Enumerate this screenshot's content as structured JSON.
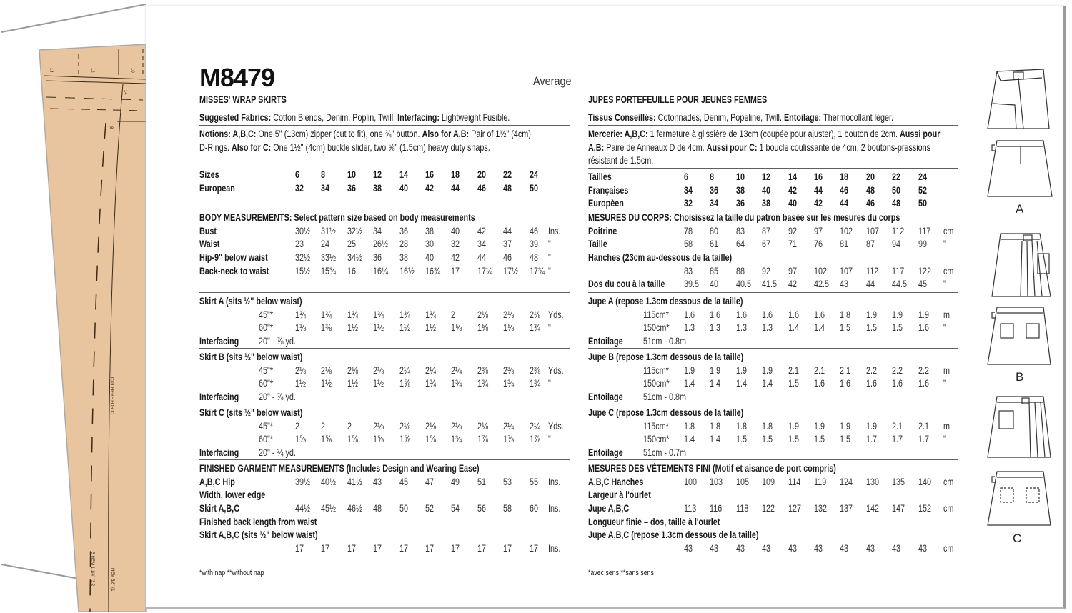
{
  "pattern_number": "M8479",
  "difficulty": "Average",
  "tissue_labels": [
    "14",
    "12",
    "10",
    "14",
    "8",
    "CUT HERE FOR C",
    "B HEM 1 1/4\" (3.2",
    "HEM 5/8\" (1."
  ],
  "colors": {
    "tissue": "#e8c59e",
    "text": "#1a1a1a",
    "rule": "#5e5e5e"
  },
  "view_labels": [
    "A",
    "B",
    "C"
  ],
  "left": {
    "blocks": [
      {
        "rows": [
          {
            "label": "MISSES' WRAP SKIRTS"
          }
        ]
      },
      {
        "para": [
          [
            {
              "b": true,
              "t": "Suggested Fabrics: "
            },
            {
              "t": "Cotton Blends, Denim, Poplin, Twill. "
            },
            {
              "b": true,
              "t": "Interfacing: "
            },
            {
              "t": "Lightweight Fusible."
            }
          ]
        ]
      },
      {
        "para": [
          [
            {
              "b": true,
              "t": "Notions: A,B,C: "
            },
            {
              "t": "One 5\" (13cm) zipper (cut to fit), one ¾\" button. "
            },
            {
              "b": true,
              "t": "Also for A,B: "
            },
            {
              "t": "Pair of 1½\" (4cm)"
            }
          ],
          [
            {
              "t": "D-Rings. "
            },
            {
              "b": true,
              "t": "Also for C: "
            },
            {
              "t": "One 1½\" (4cm) buckle slider, two ⅝\" (1.5cm) heavy duty snaps."
            }
          ]
        ]
      },
      {
        "rows": [
          {
            "label": "Sizes",
            "bold_values": true,
            "values": [
              "6",
              "8",
              "10",
              "12",
              "14",
              "16",
              "18",
              "20",
              "22",
              "24"
            ]
          },
          {
            "label": "European",
            "bold_values": true,
            "values": [
              "32",
              "34",
              "36",
              "38",
              "40",
              "42",
              "44",
              "46",
              "48",
              "50"
            ]
          }
        ]
      },
      {
        "rows": [
          {
            "label": "BODY MEASUREMENTS: Select pattern size based on body measurements"
          },
          {
            "label": "Bust",
            "values": [
              "30½",
              "31½",
              "32½",
              "34",
              "36",
              "38",
              "40",
              "42",
              "44",
              "46"
            ],
            "unit": "Ins."
          },
          {
            "label": "Waist",
            "values": [
              "23",
              "24",
              "25",
              "26½",
              "28",
              "30",
              "32",
              "34",
              "37",
              "39"
            ],
            "unit": "\""
          },
          {
            "label": "Hip-9\" below waist",
            "values": [
              "32½",
              "33½",
              "34½",
              "36",
              "38",
              "40",
              "42",
              "44",
              "46",
              "48"
            ],
            "unit": "\""
          },
          {
            "label": "Back-neck to waist",
            "values": [
              "15½",
              "15¾",
              "16",
              "16¼",
              "16½",
              "16¾",
              "17",
              "17¼",
              "17½",
              "17¾"
            ],
            "unit": "\""
          }
        ]
      },
      {
        "rows": [
          {
            "label": "Skirt A (sits ½\" below waist)"
          },
          {
            "sub": "45\"*",
            "values": [
              "1¾",
              "1¾",
              "1¾",
              "1¾",
              "1¾",
              "1¾",
              "2",
              "2⅛",
              "2⅛",
              "2⅛"
            ],
            "unit": "Yds."
          },
          {
            "sub": "60\"*",
            "values": [
              "1⅜",
              "1⅜",
              "1½",
              "1½",
              "1½",
              "1½",
              "1⅝",
              "1⅝",
              "1⅝",
              "1¾"
            ],
            "unit": "\""
          },
          {
            "label": "Interfacing",
            "sub": "20\" - ⅞ yd."
          }
        ]
      },
      {
        "rows": [
          {
            "label": "Skirt B (sits ½\" below waist)"
          },
          {
            "sub": "45\"*",
            "values": [
              "2⅛",
              "2⅛",
              "2⅛",
              "2⅛",
              "2¼",
              "2¼",
              "2¼",
              "2⅜",
              "2⅜",
              "2⅜"
            ],
            "unit": "Yds."
          },
          {
            "sub": "60\"*",
            "values": [
              "1½",
              "1½",
              "1½",
              "1½",
              "1⅝",
              "1¾",
              "1¾",
              "1¾",
              "1¾",
              "1¾"
            ],
            "unit": "\""
          },
          {
            "label": "Interfacing",
            "sub": "20\" - ⅞ yd."
          }
        ]
      },
      {
        "rows": [
          {
            "label": "Skirt C (sits ½\" below waist)"
          },
          {
            "sub": "45\"*",
            "values": [
              "2",
              "2",
              "2",
              "2⅛",
              "2⅛",
              "2⅛",
              "2⅛",
              "2⅛",
              "2¼",
              "2¼"
            ],
            "unit": "Yds."
          },
          {
            "sub": "60\"*",
            "values": [
              "1⅝",
              "1⅝",
              "1⅝",
              "1⅝",
              "1⅝",
              "1⅝",
              "1¾",
              "1⅞",
              "1⅞",
              "1⅞"
            ],
            "unit": "\""
          },
          {
            "label": "Interfacing",
            "sub": "20\" - ¾ yd."
          }
        ]
      },
      {
        "rows": [
          {
            "label": "FINISHED GARMENT MEASUREMENTS (Includes Design and Wearing Ease)"
          },
          {
            "label": "A,B,C Hip",
            "values": [
              "39½",
              "40½",
              "41½",
              "43",
              "45",
              "47",
              "49",
              "51",
              "53",
              "55"
            ],
            "unit": "Ins."
          },
          {
            "label": "Width, lower edge"
          },
          {
            "label": "Skirt A,B,C",
            "values": [
              "44½",
              "45½",
              "46½",
              "48",
              "50",
              "52",
              "54",
              "56",
              "58",
              "60"
            ],
            "unit": "Ins."
          },
          {
            "label": "Finished back length from waist"
          },
          {
            "label": "Skirt A,B,C (sits ½\" below waist)"
          },
          {
            "values": [
              "17",
              "17",
              "17",
              "17",
              "17",
              "17",
              "17",
              "17",
              "17",
              "17"
            ],
            "unit": "Ins."
          }
        ]
      }
    ],
    "footnote": "*with nap   **without nap"
  },
  "right": {
    "blocks": [
      {
        "rows": [
          {
            "label": "JUPES PORTEFEUILLE POUR JEUNES FEMMES"
          }
        ]
      },
      {
        "para": [
          [
            {
              "b": true,
              "t": "Tissus Conseillés: "
            },
            {
              "t": "Cotonnades, Denim, Popeline, Twill. "
            },
            {
              "b": true,
              "t": "Entoilage: "
            },
            {
              "t": "Thermocollant léger."
            }
          ]
        ]
      },
      {
        "para": [
          [
            {
              "b": true,
              "t": "Mercerie: A,B,C: "
            },
            {
              "t": "1 fermeture à glissière de 13cm (coupée pour ajuster), 1 bouton de 2cm. "
            },
            {
              "b": true,
              "t": "Aussi pour"
            }
          ],
          [
            {
              "b": true,
              "t": "A,B: "
            },
            {
              "t": "Paire de Anneaux D de 4cm. "
            },
            {
              "b": true,
              "t": "Aussi pour C: "
            },
            {
              "t": "1 boucle coulissante de 4cm, 2 boutons-pressions"
            }
          ],
          [
            {
              "t": "résistant de 1.5cm."
            }
          ]
        ]
      },
      {
        "rows": [
          {
            "label": "Tailles",
            "bold_values": true,
            "values": [
              "6",
              "8",
              "10",
              "12",
              "14",
              "16",
              "18",
              "20",
              "22",
              "24"
            ]
          },
          {
            "label": "Françaises",
            "bold_values": true,
            "values": [
              "34",
              "36",
              "38",
              "40",
              "42",
              "44",
              "46",
              "48",
              "50",
              "52"
            ]
          },
          {
            "label": "Europèen",
            "bold_values": true,
            "values": [
              "32",
              "34",
              "36",
              "38",
              "40",
              "42",
              "44",
              "46",
              "48",
              "50"
            ]
          }
        ]
      },
      {
        "rows": [
          {
            "label": "MESURES DU CORPS: Choisissez la taille du patron basée sur les mesures du corps"
          },
          {
            "label": "Poitrine",
            "values": [
              "78",
              "80",
              "83",
              "87",
              "92",
              "97",
              "102",
              "107",
              "112",
              "117"
            ],
            "unit": "cm"
          },
          {
            "label": "Taille",
            "values": [
              "58",
              "61",
              "64",
              "67",
              "71",
              "76",
              "81",
              "87",
              "94",
              "99"
            ],
            "unit": "\""
          },
          {
            "label": "Hanches (23cm au-dessous de la taille)"
          },
          {
            "values": [
              "83",
              "85",
              "88",
              "92",
              "97",
              "102",
              "107",
              "112",
              "117",
              "122"
            ],
            "unit": "cm"
          },
          {
            "label": "Dos du cou à la taille",
            "values": [
              "39.5",
              "40",
              "40.5",
              "41.5",
              "42",
              "42.5",
              "43",
              "44",
              "44.5",
              "45"
            ],
            "unit": "\""
          }
        ]
      },
      {
        "rows": [
          {
            "label": "Jupe A (repose 1.3cm dessous de la taille)"
          },
          {
            "sub": "115cm*",
            "values": [
              "1.6",
              "1.6",
              "1.6",
              "1.6",
              "1.6",
              "1.6",
              "1.8",
              "1.9",
              "1.9",
              "1.9"
            ],
            "unit": "m"
          },
          {
            "sub": "150cm*",
            "values": [
              "1.3",
              "1.3",
              "1.3",
              "1.3",
              "1.4",
              "1.4",
              "1.5",
              "1.5",
              "1.5",
              "1.6"
            ],
            "unit": "\""
          },
          {
            "label": "Entoilage",
            "sub": "51cm - 0.8m"
          }
        ]
      },
      {
        "rows": [
          {
            "label": "Jupe B (repose 1.3cm dessous de la taille)"
          },
          {
            "sub": "115cm*",
            "values": [
              "1.9",
              "1.9",
              "1.9",
              "1.9",
              "2.1",
              "2.1",
              "2.1",
              "2.2",
              "2.2",
              "2.2"
            ],
            "unit": "m"
          },
          {
            "sub": "150cm*",
            "values": [
              "1.4",
              "1.4",
              "1.4",
              "1.4",
              "1.5",
              "1.6",
              "1.6",
              "1.6",
              "1.6",
              "1.6"
            ],
            "unit": "\""
          },
          {
            "label": "Entoilage",
            "sub": "51cm - 0.8m"
          }
        ]
      },
      {
        "rows": [
          {
            "label": "Jupe C (repose 1.3cm dessous de la taille)"
          },
          {
            "sub": "115cm*",
            "values": [
              "1.8",
              "1.8",
              "1.8",
              "1.8",
              "1.9",
              "1.9",
              "1.9",
              "1.9",
              "2.1",
              "2.1"
            ],
            "unit": "m"
          },
          {
            "sub": "150cm*",
            "values": [
              "1.4",
              "1.4",
              "1.5",
              "1.5",
              "1.5",
              "1.5",
              "1.5",
              "1.7",
              "1.7",
              "1.7"
            ],
            "unit": "\""
          },
          {
            "label": "Entoilage",
            "sub": "51cm - 0.7m"
          }
        ]
      },
      {
        "rows": [
          {
            "label": "MESURES DES VÉTEMENTS FINI (Motif et aisance de port compris)"
          },
          {
            "label": "A,B,C Hanches",
            "values": [
              "100",
              "103",
              "105",
              "109",
              "114",
              "119",
              "124",
              "130",
              "135",
              "140"
            ],
            "unit": "cm"
          },
          {
            "label": "Largeur à l'ourlet"
          },
          {
            "label": "Jupe A,B,C",
            "values": [
              "113",
              "116",
              "118",
              "122",
              "127",
              "132",
              "137",
              "142",
              "147",
              "152"
            ],
            "unit": "cm"
          },
          {
            "label": "Longueur finie – dos, taille à l'ourlet"
          },
          {
            "label": "Jupe A,B,C (repose 1.3cm dessous de la taille)"
          },
          {
            "values": [
              "43",
              "43",
              "43",
              "43",
              "43",
              "43",
              "43",
              "43",
              "43",
              "43"
            ],
            "unit": "cm"
          }
        ]
      }
    ],
    "footnote": "*avec sens   **sans sens"
  }
}
